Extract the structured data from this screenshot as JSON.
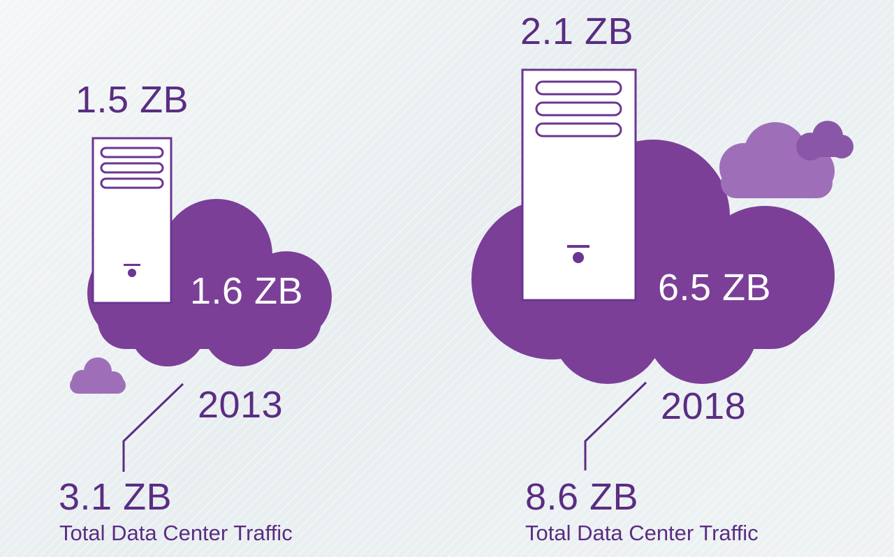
{
  "panels": [
    {
      "year": "2013",
      "traditional_value": "1.5 ZB",
      "cloud_value": "1.6 ZB",
      "total_value": "3.1 ZB",
      "total_label": "Total Data Center Traffic"
    },
    {
      "year": "2018",
      "traditional_value": "2.1 ZB",
      "cloud_value": "6.5 ZB",
      "total_value": "8.6 ZB",
      "total_label": "Total Data Center Traffic"
    }
  ],
  "colors": {
    "cloud_dark": "#7b3f98",
    "cloud_light": "#9e6fb8",
    "text_purple": "#5a2d82",
    "server_fill": "#ffffff"
  },
  "icons": [
    "cloud-icon",
    "server-icon",
    "small-cloud-icon"
  ]
}
